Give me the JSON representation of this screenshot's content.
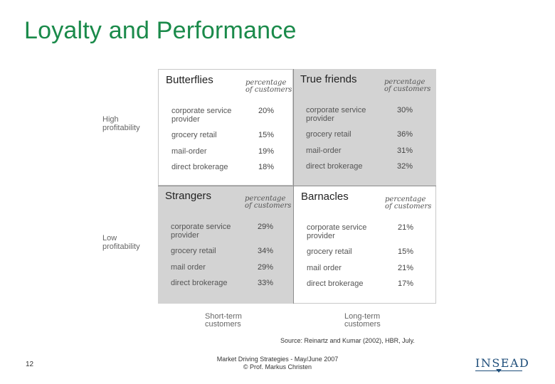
{
  "title": "Loyalty and Performance",
  "row_labels": {
    "high": [
      "High",
      "profitability"
    ],
    "low": [
      "Low",
      "profitability"
    ]
  },
  "col_labels": {
    "short": [
      "Short-term",
      "customers"
    ],
    "long": [
      "Long-term",
      "customers"
    ]
  },
  "percentage_header": [
    "percentage",
    "of customers"
  ],
  "quadrants": {
    "butterflies": {
      "name": "Butterflies",
      "rows": [
        {
          "label": [
            "corporate service",
            "provider"
          ],
          "value": "20%"
        },
        {
          "label": [
            "grocery retail"
          ],
          "value": "15%"
        },
        {
          "label": [
            "mail-order"
          ],
          "value": "19%"
        },
        {
          "label": [
            "direct brokerage"
          ],
          "value": "18%"
        }
      ]
    },
    "true_friends": {
      "name": "True friends",
      "rows": [
        {
          "label": [
            "corporate service",
            "provider"
          ],
          "value": "30%"
        },
        {
          "label": [
            "grocery retail"
          ],
          "value": "36%"
        },
        {
          "label": [
            "mail-order"
          ],
          "value": "31%"
        },
        {
          "label": [
            "direct brokerage"
          ],
          "value": "32%"
        }
      ]
    },
    "strangers": {
      "name": "Strangers",
      "rows": [
        {
          "label": [
            "corporate service",
            "provider"
          ],
          "value": "29%"
        },
        {
          "label": [
            "grocery retail"
          ],
          "value": "34%"
        },
        {
          "label": [
            "mail order"
          ],
          "value": "29%"
        },
        {
          "label": [
            "direct brokerage"
          ],
          "value": "33%"
        }
      ]
    },
    "barnacles": {
      "name": "Barnacles",
      "rows": [
        {
          "label": [
            "corporate service",
            "provider"
          ],
          "value": "21%"
        },
        {
          "label": [
            "grocery retail"
          ],
          "value": "15%"
        },
        {
          "label": [
            "mail order"
          ],
          "value": "21%"
        },
        {
          "label": [
            "direct brokerage"
          ],
          "value": "17%"
        }
      ]
    }
  },
  "source": "Source: Reinartz and Kumar (2002), HBR, July.",
  "page_number": "12",
  "footer": [
    "Market Driving Strategies - May/June 2007",
    "© Prof. Markus Christen"
  ],
  "logo": "INSEAD",
  "colors": {
    "title": "#1a8a4a",
    "quadrant_shade": "#d3d3d3",
    "logo": "#1f4e7a"
  }
}
